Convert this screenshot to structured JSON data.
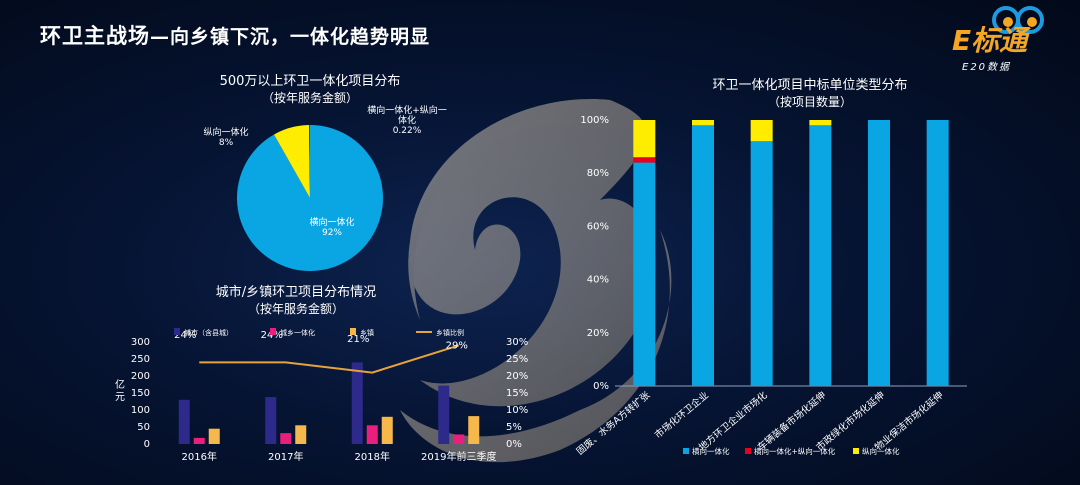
{
  "slide": {
    "title": "环卫主战场",
    "subtitle": "—向乡镇下沉，一体化趋势明显"
  },
  "logo": {
    "brand": "E标通",
    "tagline": "E20数据"
  },
  "colors": {
    "blue": "#0aa6e4",
    "yellow": "#ffed00",
    "red": "#e8001d",
    "navy": "#2e2a8c",
    "pink": "#e91e7d",
    "orange": "#f7b84b",
    "line": "#e8a23a"
  },
  "chart_data": [
    {
      "type": "pie",
      "title": "500万以上环卫一体化项目分布",
      "subtitle": "（按年服务金额）",
      "slices": [
        {
          "name": "横向一体化",
          "value": 92,
          "label": "92%",
          "color": "#0aa6e4"
        },
        {
          "name": "纵向一体化",
          "value": 8,
          "label": "8%",
          "color": "#ffed00"
        },
        {
          "name": "横向一体化+纵向一体化",
          "value": 0.22,
          "label": "0.22%",
          "color": "#e8001d"
        }
      ],
      "slice_labels": {
        "horizontal": [
          "横向一体化",
          "92%"
        ],
        "vertical": [
          "纵向一体化",
          "8%"
        ],
        "both": [
          "横向一体化+纵向一",
          "体化",
          "0.22%"
        ]
      }
    },
    {
      "type": "bar",
      "title": "城市/乡镇环卫项目分布情况",
      "subtitle": "（按年服务金额）",
      "ylabel": "亿元",
      "ylim": [
        0,
        300
      ],
      "y_ticks": [
        "300",
        "250",
        "200",
        "150",
        "100",
        "50",
        "0"
      ],
      "y2lim": [
        0,
        0.3
      ],
      "y2_ticks": [
        "30%",
        "25%",
        "20%",
        "15%",
        "10%",
        "5%",
        "0%"
      ],
      "categories": [
        "2016年",
        "2017年",
        "2018年",
        "2019年前三季度"
      ],
      "series": [
        {
          "name": "城市（含县城）",
          "type": "bar",
          "color": "#2e2a8c",
          "values": [
            130,
            138,
            240,
            172
          ]
        },
        {
          "name": "城乡一体化",
          "type": "bar",
          "color": "#e91e7d",
          "values": [
            18,
            32,
            55,
            28
          ]
        },
        {
          "name": "乡镇",
          "type": "bar",
          "color": "#f7b84b",
          "values": [
            45,
            55,
            80,
            82
          ]
        },
        {
          "name": "乡镇比例",
          "type": "line",
          "axis": "right",
          "color": "#e8a23a",
          "values": [
            0.24,
            0.24,
            0.21,
            0.29
          ],
          "labels": [
            "24%",
            "24%",
            "21%",
            "29%"
          ]
        }
      ]
    },
    {
      "type": "bar",
      "stacked": true,
      "title": "环卫一体化项目中标单位类型分布",
      "subtitle": "（按项目数量）",
      "ylim": [
        0,
        1
      ],
      "y_ticks": [
        "100%",
        "80%",
        "60%",
        "40%",
        "20%",
        "0%"
      ],
      "categories": [
        "固废、水务A方转扩张",
        "市场化环卫企业",
        "地方环卫企业市场化",
        "车辆装备市场化延伸",
        "市政绿化市场化延伸",
        "物业保洁市场化延伸"
      ],
      "series": [
        {
          "name": "横向一体化",
          "color": "#0aa6e4",
          "values": [
            0.84,
            0.98,
            0.92,
            0.98,
            1.0,
            1.0
          ]
        },
        {
          "name": "横向一体化+纵向一体化",
          "color": "#e8001d",
          "values": [
            0.02,
            0,
            0,
            0,
            0,
            0
          ]
        },
        {
          "name": "纵向一体化",
          "color": "#ffed00",
          "values": [
            0.14,
            0.02,
            0.08,
            0.02,
            0,
            0
          ]
        }
      ]
    }
  ]
}
